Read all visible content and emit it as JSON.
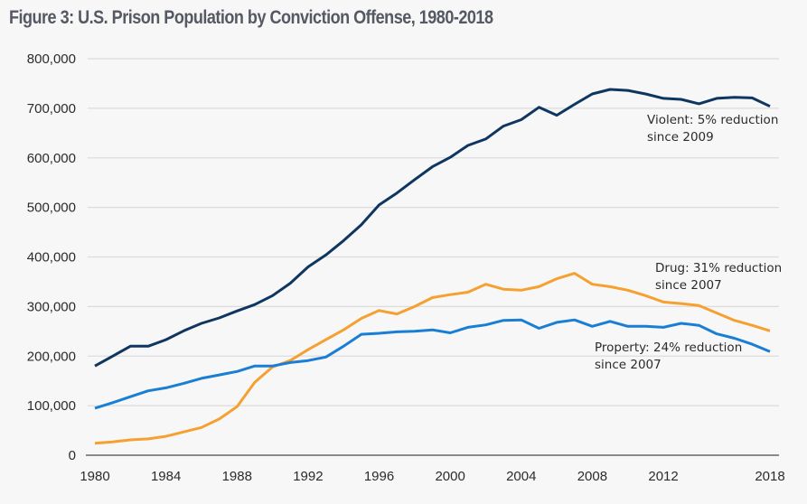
{
  "title": "Figure 3: U.S. Prison Population by Conviction Offense, 1980-2018",
  "chart_data": {
    "type": "line",
    "title": "Figure 3: U.S. Prison Population by Conviction Offense, 1980-2018",
    "xlabel": "",
    "ylabel": "",
    "xlim": [
      1980,
      2018
    ],
    "ylim": [
      0,
      800000
    ],
    "grid": true,
    "legend": "none (inline annotations)",
    "x_ticks": [
      "1980",
      "1984",
      "1988",
      "1992",
      "1996",
      "2000",
      "2004",
      "2008",
      "2012",
      "2018"
    ],
    "x_tick_values": [
      1980,
      1984,
      1988,
      1992,
      1996,
      2000,
      2004,
      2008,
      2012,
      2018
    ],
    "y_ticks": [
      "0",
      "100,000",
      "200,000",
      "300,000",
      "400,000",
      "500,000",
      "600,000",
      "700,000",
      "800,000"
    ],
    "y_tick_values": [
      0,
      100000,
      200000,
      300000,
      400000,
      500000,
      600000,
      700000,
      800000
    ],
    "x": [
      1980,
      1981,
      1982,
      1983,
      1984,
      1985,
      1986,
      1987,
      1988,
      1989,
      1990,
      1991,
      1992,
      1993,
      1994,
      1995,
      1996,
      1997,
      1998,
      1999,
      2000,
      2001,
      2002,
      2003,
      2004,
      2005,
      2006,
      2007,
      2008,
      2009,
      2010,
      2011,
      2012,
      2013,
      2014,
      2015,
      2016,
      2017,
      2018
    ],
    "series": [
      {
        "name": "Violent",
        "color": "#0f3660",
        "values": [
          180000,
          200000,
          220000,
          220000,
          233000,
          251000,
          266000,
          277000,
          291000,
          304000,
          322000,
          347000,
          380000,
          404000,
          433000,
          465000,
          505000,
          529000,
          556000,
          582000,
          601000,
          625000,
          638000,
          664000,
          677000,
          702000,
          686000,
          708000,
          729000,
          738000,
          736000,
          729000,
          720000,
          718000,
          709000,
          720000,
          722000,
          721000,
          704000
        ],
        "annotation": [
          "Violent: 5% reduction",
          "since 2009"
        ]
      },
      {
        "name": "Drug",
        "color": "#f5a031",
        "values": [
          24000,
          27000,
          31000,
          33000,
          38000,
          47000,
          56000,
          73000,
          98000,
          147000,
          178000,
          191000,
          213000,
          233000,
          253000,
          276000,
          292000,
          285000,
          300000,
          318000,
          324000,
          329000,
          345000,
          335000,
          333000,
          340000,
          356000,
          367000,
          345000,
          340000,
          333000,
          322000,
          309000,
          306000,
          302000,
          287000,
          272000,
          262000,
          251000
        ],
        "annotation": [
          "Drug: 31% reduction",
          "since 2007"
        ]
      },
      {
        "name": "Property",
        "color": "#1a7fd4",
        "values": [
          95000,
          106000,
          118000,
          130000,
          136000,
          145000,
          155000,
          162000,
          169000,
          180000,
          180000,
          187000,
          191000,
          198000,
          220000,
          244000,
          246000,
          249000,
          250000,
          253000,
          247000,
          258000,
          263000,
          272000,
          273000,
          256000,
          268000,
          273000,
          260000,
          270000,
          260000,
          260000,
          258000,
          266000,
          262000,
          245000,
          236000,
          224000,
          209000
        ],
        "annotation": [
          "Property: 24% reduction",
          "since 2007"
        ]
      }
    ]
  }
}
